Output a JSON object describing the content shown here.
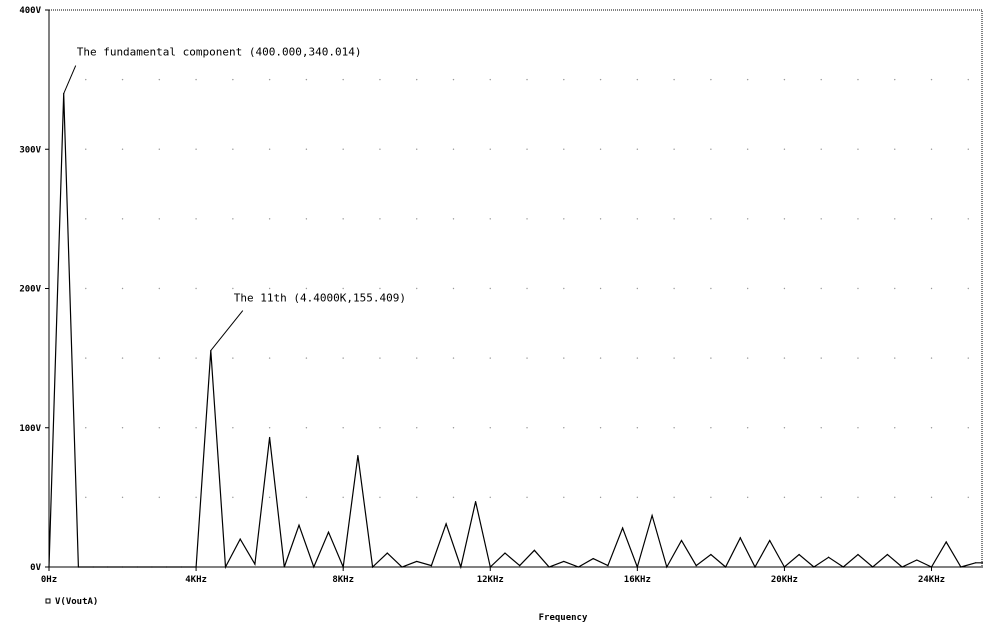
{
  "chart_data": {
    "type": "line",
    "title": "",
    "xlabel": "Frequency",
    "ylabel": "",
    "xlim": [
      0,
      25.4
    ],
    "ylim": [
      0,
      400
    ],
    "x_unit": "kHz",
    "y_unit": "V",
    "grid": "dotted",
    "legend_position": "bottom-left",
    "x_ticks": [
      {
        "value": 0,
        "label": "0Hz"
      },
      {
        "value": 4,
        "label": "4KHz"
      },
      {
        "value": 8,
        "label": "8KHz"
      },
      {
        "value": 12,
        "label": "12KHz"
      },
      {
        "value": 16,
        "label": "16KHz"
      },
      {
        "value": 20,
        "label": "20KHz"
      },
      {
        "value": 24,
        "label": "24KHz"
      }
    ],
    "y_ticks": [
      {
        "value": 0,
        "label": "0V"
      },
      {
        "value": 100,
        "label": "100V"
      },
      {
        "value": 200,
        "label": "200V"
      },
      {
        "value": 300,
        "label": "300V"
      },
      {
        "value": 400,
        "label": "400V"
      }
    ],
    "series": [
      {
        "name": "V(VoutA)",
        "color": "#000000",
        "x": [
          0,
          0.4,
          0.8,
          1.2,
          1.6,
          2.0,
          2.4,
          2.8,
          3.2,
          3.6,
          4.0,
          4.4,
          4.8,
          5.2,
          5.6,
          6.0,
          6.4,
          6.8,
          7.2,
          7.6,
          8.0,
          8.4,
          8.8,
          9.2,
          9.6,
          10.0,
          10.4,
          10.8,
          11.2,
          11.6,
          12.0,
          12.4,
          12.8,
          13.2,
          13.6,
          14.0,
          14.4,
          14.8,
          15.2,
          15.6,
          16.0,
          16.4,
          16.8,
          17.2,
          17.6,
          18.0,
          18.4,
          18.8,
          19.2,
          19.6,
          20.0,
          20.4,
          20.8,
          21.2,
          21.6,
          22.0,
          22.4,
          22.8,
          23.2,
          23.6,
          24.0,
          24.4,
          24.8,
          25.2,
          25.4
        ],
        "values": [
          0,
          340.014,
          0,
          0,
          0,
          0,
          0,
          0,
          0,
          0,
          0,
          155.409,
          0,
          20,
          2,
          93,
          0,
          30,
          0,
          25,
          0,
          80,
          0,
          10,
          0,
          4,
          1,
          31,
          0,
          47,
          0,
          10,
          1,
          12,
          0,
          4,
          0,
          6,
          1,
          28,
          0,
          37,
          0,
          19,
          1,
          9,
          0,
          21,
          0,
          19,
          0,
          9,
          0,
          7,
          0,
          9,
          0,
          9,
          0,
          5,
          0,
          18,
          0,
          3,
          3
        ]
      }
    ],
    "annotations": [
      {
        "text": "The fundamental component (400.000,340.014)",
        "x": 0.4,
        "y": 340.014
      },
      {
        "text": "The 11th (4.4000K,155.409)",
        "x": 4.4,
        "y": 155.409
      }
    ]
  }
}
